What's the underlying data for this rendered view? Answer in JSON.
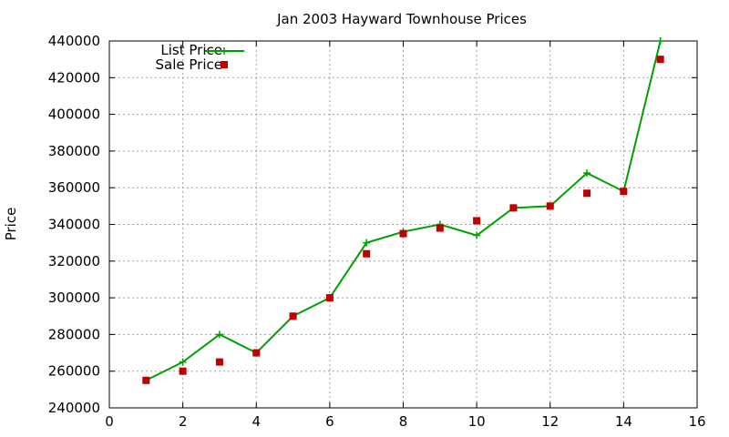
{
  "chart_data": {
    "type": "line",
    "title": "Jan 2003 Hayward Townhouse Prices",
    "xlabel": "",
    "ylabel": "Price",
    "xlim": [
      0,
      16
    ],
    "ylim": [
      240000,
      440000
    ],
    "x_ticks": [
      "0",
      "2",
      "4",
      "6",
      "8",
      "10",
      "12",
      "14",
      "16"
    ],
    "y_ticks": [
      "240000",
      "260000",
      "280000",
      "300000",
      "320000",
      "340000",
      "360000",
      "380000",
      "400000",
      "420000",
      "440000"
    ],
    "grid": true,
    "legend_position": "top-left",
    "series": [
      {
        "name": "List Price",
        "style": "line-with-plus-markers",
        "color": "#00a000",
        "x": [
          1,
          2,
          3,
          4,
          5,
          6,
          7,
          8,
          9,
          10,
          11,
          12,
          13,
          14,
          15
        ],
        "y": [
          255000,
          265000,
          280000,
          270000,
          290000,
          300000,
          330000,
          336000,
          340000,
          334000,
          349000,
          350000,
          368000,
          358000,
          440000
        ]
      },
      {
        "name": "Sale Price",
        "style": "square-markers",
        "color": "#c00000",
        "x": [
          1,
          2,
          3,
          4,
          5,
          6,
          7,
          8,
          9,
          10,
          11,
          12,
          13,
          14,
          15
        ],
        "y": [
          255000,
          260000,
          265000,
          270000,
          290000,
          300000,
          324000,
          335000,
          338000,
          342000,
          349000,
          350000,
          357000,
          358000,
          430000
        ]
      }
    ]
  }
}
